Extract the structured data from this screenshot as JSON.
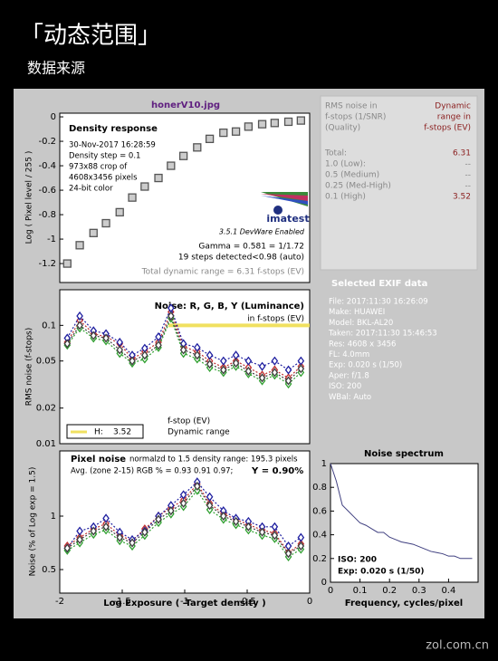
{
  "header": {
    "title": "「动态范围」",
    "subtitle": "数据来源"
  },
  "watermark": "zol.com.cn",
  "image_title": "honerV10.jpg",
  "rms_table": {
    "head_left": [
      "RMS noise in",
      "f-stops (1/SNR)",
      "(Quality)"
    ],
    "head_right": [
      "Dynamic",
      "range in",
      "f-stops (EV)"
    ],
    "rows": [
      [
        "Total:",
        "6.31"
      ],
      [
        "1.0  (Low):",
        "--"
      ],
      [
        "0.5  (Medium)",
        "--"
      ],
      [
        "0.25 (Med-High)",
        "--"
      ],
      [
        "0.1  (High)",
        "3.52"
      ]
    ]
  },
  "exif": {
    "title": "Selected EXIF data",
    "lines": [
      "File:  2017:11:30 16:26:09",
      "Make:  HUAWEI",
      "Model: BKL-AL20",
      "Taken: 2017:11:30 15:46:53",
      "Res:    4608 x 3456",
      "FL:     4.0mm",
      "Exp:   0.020 s  (1/50)",
      "Aper:  f/1.8",
      "ISO:    200",
      "WBal:  Auto"
    ]
  },
  "chart_data": [
    {
      "type": "scatter",
      "title": "Density response",
      "y_label": "Log ( Pixel level / 255 )",
      "annotations": [
        "30-Nov-2017 16:28:59",
        "Density step = 0.1",
        "973x88 crop of",
        "4608x3456 pixels",
        "24-bit color"
      ],
      "logo": "imatest",
      "version": "3.5.1  DevWare Enabled",
      "gamma": "Gamma = 0.581 = 1/1.72",
      "steps": "19 steps detected<0.98 (auto)",
      "total": "Total dynamic range = 6.31 f-stops (EV)",
      "xlim": [
        -2,
        0
      ],
      "ylim": [
        -1.355,
        0.03
      ],
      "yticks": [
        0,
        -0.2,
        -0.4,
        -0.6,
        -0.8,
        -1,
        -1.2
      ],
      "x": [
        -1.94,
        -1.84,
        -1.73,
        -1.63,
        -1.52,
        -1.42,
        -1.32,
        -1.21,
        -1.11,
        -1.01,
        -0.9,
        -0.8,
        -0.69,
        -0.59,
        -0.49,
        -0.38,
        -0.28,
        -0.17,
        -0.07
      ],
      "series": [
        {
          "color": "#555555",
          "marker": "square",
          "values": [
            -1.2,
            -1.05,
            -0.95,
            -0.87,
            -0.78,
            -0.66,
            -0.57,
            -0.5,
            -0.4,
            -0.32,
            -0.25,
            -0.18,
            -0.13,
            -0.12,
            -0.08,
            -0.06,
            -0.05,
            -0.04,
            -0.03
          ]
        }
      ]
    },
    {
      "type": "line",
      "title": "Noise: R, G, B, Y (Luminance)",
      "subtitle": "in f-stops (EV)",
      "y_label": "RMS noise (f-stops)",
      "log_y": true,
      "legend_text": [
        "f-stop (EV)",
        "Dynamic range"
      ],
      "h_line": {
        "name": "H:",
        "y": 0.1,
        "x": [
          -1.13,
          0
        ],
        "color": "#f0e060",
        "range": 3.52
      },
      "xlim": [
        -2,
        0
      ],
      "ylim": [
        0.01,
        0.2
      ],
      "yticks": [
        0.1,
        0.05,
        0.02,
        0.01
      ],
      "x": [
        -1.94,
        -1.84,
        -1.73,
        -1.63,
        -1.52,
        -1.42,
        -1.32,
        -1.21,
        -1.11,
        -1.01,
        -0.9,
        -0.8,
        -0.69,
        -0.59,
        -0.49,
        -0.38,
        -0.28,
        -0.17,
        -0.07
      ],
      "series": [
        {
          "color": "#c03030",
          "marker": "diamond",
          "values": [
            0.072,
            0.11,
            0.085,
            0.08,
            0.07,
            0.052,
            0.06,
            0.072,
            0.13,
            0.066,
            0.06,
            0.05,
            0.044,
            0.05,
            0.044,
            0.038,
            0.042,
            0.036,
            0.045
          ]
        },
        {
          "color": "#30a030",
          "marker": "diamond",
          "values": [
            0.068,
            0.095,
            0.078,
            0.074,
            0.058,
            0.048,
            0.052,
            0.065,
            0.115,
            0.058,
            0.052,
            0.044,
            0.04,
            0.045,
            0.039,
            0.034,
            0.038,
            0.032,
            0.04
          ]
        },
        {
          "color": "#2020a0",
          "marker": "diamond",
          "values": [
            0.078,
            0.12,
            0.09,
            0.085,
            0.072,
            0.056,
            0.064,
            0.08,
            0.14,
            0.07,
            0.065,
            0.056,
            0.05,
            0.056,
            0.05,
            0.045,
            0.05,
            0.042,
            0.05
          ]
        },
        {
          "color": "#404040",
          "marker": "diamond",
          "values": [
            0.07,
            0.1,
            0.082,
            0.078,
            0.062,
            0.05,
            0.056,
            0.068,
            0.12,
            0.062,
            0.056,
            0.047,
            0.042,
            0.048,
            0.041,
            0.036,
            0.04,
            0.034,
            0.043
          ]
        }
      ]
    },
    {
      "type": "line",
      "title": "Pixel noise",
      "subtitle": "normalzd to 1.5 density range: 195.3 pixels",
      "avg": "Avg. (zone 2-15) RGB % = 0.93  0.91  0.97;",
      "avg_y": "Y = 0.90%",
      "x_label": "Log Exposure ( -Target density )",
      "y_label": "Noise (% of Log exp = 1.5)",
      "xlim": [
        -2,
        0
      ],
      "xticks": [
        -2,
        -1.5,
        -1,
        -0.5,
        0
      ],
      "ylim": [
        0.28,
        1.61
      ],
      "yticks": [
        1,
        0.5
      ],
      "x": [
        -1.94,
        -1.84,
        -1.73,
        -1.63,
        -1.52,
        -1.42,
        -1.32,
        -1.21,
        -1.11,
        -1.01,
        -0.9,
        -0.8,
        -0.69,
        -0.59,
        -0.49,
        -0.38,
        -0.28,
        -0.17,
        -0.07
      ],
      "series": [
        {
          "color": "#c03030",
          "marker": "diamond",
          "values": [
            0.72,
            0.8,
            0.88,
            0.93,
            0.82,
            0.77,
            0.88,
            1.0,
            1.08,
            1.15,
            1.3,
            1.12,
            1.02,
            0.97,
            0.92,
            0.87,
            0.84,
            0.66,
            0.74
          ]
        },
        {
          "color": "#30a030",
          "marker": "diamond",
          "values": [
            0.68,
            0.75,
            0.83,
            0.87,
            0.77,
            0.72,
            0.82,
            0.94,
            1.02,
            1.09,
            1.24,
            1.06,
            0.97,
            0.92,
            0.87,
            0.82,
            0.79,
            0.62,
            0.69
          ]
        },
        {
          "color": "#2020a0",
          "marker": "diamond",
          "values": [
            0.7,
            0.86,
            0.9,
            0.98,
            0.85,
            0.78,
            0.86,
            1.0,
            1.1,
            1.2,
            1.32,
            1.18,
            1.05,
            0.98,
            0.95,
            0.9,
            0.9,
            0.72,
            0.8
          ]
        },
        {
          "color": "#404040",
          "marker": "diamond",
          "values": [
            0.7,
            0.78,
            0.86,
            0.9,
            0.8,
            0.75,
            0.85,
            0.97,
            1.05,
            1.12,
            1.28,
            1.1,
            1.0,
            0.95,
            0.9,
            0.85,
            0.82,
            0.65,
            0.72
          ]
        }
      ]
    },
    {
      "type": "line",
      "title": "Noise spectrum",
      "x_label": "Frequency, cycles/pixel",
      "annotations": [
        "ISO:  200",
        "Exp:  0.020 s  (1/50)"
      ],
      "xlim": [
        0,
        0.5
      ],
      "xticks": [
        0,
        0.1,
        0.2,
        0.3,
        0.4
      ],
      "ylim": [
        0,
        1
      ],
      "yticks": [
        0,
        0.2,
        0.4,
        0.6,
        0.8,
        1
      ],
      "x": [
        0,
        0.02,
        0.04,
        0.06,
        0.08,
        0.1,
        0.12,
        0.14,
        0.16,
        0.18,
        0.2,
        0.22,
        0.24,
        0.26,
        0.28,
        0.3,
        0.32,
        0.34,
        0.36,
        0.38,
        0.4,
        0.42,
        0.44,
        0.46,
        0.48
      ],
      "series": [
        {
          "color": "#404080",
          "values": [
            1,
            0.85,
            0.65,
            0.6,
            0.55,
            0.5,
            0.48,
            0.45,
            0.42,
            0.42,
            0.38,
            0.36,
            0.34,
            0.33,
            0.32,
            0.3,
            0.28,
            0.26,
            0.25,
            0.24,
            0.22,
            0.22,
            0.2,
            0.2,
            0.2
          ]
        }
      ]
    }
  ]
}
